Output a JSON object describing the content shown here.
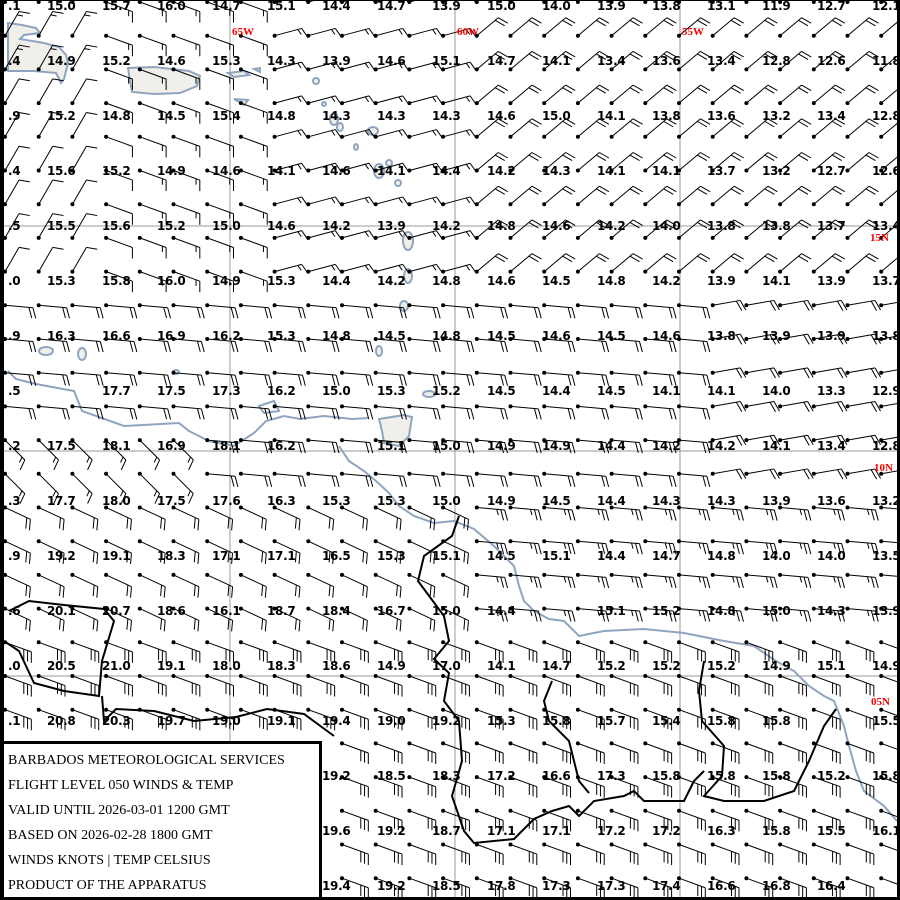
{
  "colors": {
    "coast": "#8ea4bf",
    "border": "#000000",
    "grid": "#999999",
    "label": "#ff0000",
    "barb": "#000000"
  },
  "geo_labels": {
    "lon": [
      "65W",
      "60W",
      "55W"
    ],
    "lat": [
      "15N",
      "10N",
      "05N"
    ]
  },
  "legend": {
    "lines": [
      "BARBADOS METEOROLOGICAL SERVICES",
      "FLIGHT LEVEL 050 WINDS & TEMP",
      "VALID UNTIL 2026-03-01 1200 GMT",
      "BASED ON 2026-02-28 1800 GMT",
      "WINDS KNOTS | TEMP CELSIUS",
      "PRODUCT OF THE APPARATUS"
    ]
  },
  "temps": {
    "edge_column": [
      ".1",
      ".4",
      ".9",
      ".4",
      ".5",
      ".0",
      ".9",
      ".5",
      ".2",
      ".3",
      ".9",
      ".6",
      ".0",
      ".1",
      "",
      "",
      ""
    ],
    "rows": [
      [
        "15.0",
        "15.7",
        "16.0",
        "14.7",
        "15.1",
        "14.4",
        "14.7",
        "13.9",
        "15.0",
        "14.0",
        "13.9",
        "13.8",
        "13.1",
        "11.9",
        "12.7",
        "12.1"
      ],
      [
        "14.9",
        "15.2",
        "14.6",
        "15.3",
        "14.3",
        "13.9",
        "14.6",
        "15.1",
        "14.7",
        "14.1",
        "13.4",
        "13.6",
        "13.4",
        "12.8",
        "12.6",
        "11.8"
      ],
      [
        "15.2",
        "14.8",
        "14.5",
        "15.4",
        "14.8",
        "14.3",
        "14.3",
        "14.3",
        "14.6",
        "15.0",
        "14.1",
        "13.8",
        "13.6",
        "13.2",
        "13.4",
        "12.8"
      ],
      [
        "15.6",
        "15.2",
        "14.9",
        "14.6",
        "14.1",
        "14.6",
        "14.1",
        "14.4",
        "14.2",
        "14.3",
        "14.1",
        "14.1",
        "13.7",
        "13.2",
        "12.7",
        "12.6"
      ],
      [
        "15.5",
        "15.6",
        "15.2",
        "15.0",
        "14.6",
        "14.2",
        "13.9",
        "14.2",
        "14.8",
        "14.6",
        "14.2",
        "14.0",
        "13.8",
        "13.8",
        "13.7",
        "13.4"
      ],
      [
        "15.3",
        "15.8",
        "16.0",
        "14.9",
        "15.3",
        "14.4",
        "14.2",
        "14.8",
        "14.6",
        "14.5",
        "14.8",
        "14.2",
        "13.9",
        "14.1",
        "13.9",
        "13.7"
      ],
      [
        "16.3",
        "16.6",
        "16.9",
        "16.2",
        "15.3",
        "14.8",
        "14.5",
        "14.8",
        "14.5",
        "14.6",
        "14.5",
        "14.6",
        "13.8",
        "13.9",
        "13.9",
        "13.8"
      ],
      [
        "",
        "17.7",
        "17.5",
        "17.3",
        "16.2",
        "15.0",
        "15.3",
        "15.2",
        "14.5",
        "14.4",
        "14.5",
        "14.1",
        "14.1",
        "14.0",
        "13.3",
        "12.9"
      ],
      [
        "17.5",
        "18.1",
        "16.9",
        "18.1",
        "16.2",
        "",
        "15.1",
        "15.0",
        "14.9",
        "14.9",
        "14.4",
        "14.2",
        "14.2",
        "14.1",
        "13.4",
        "12.8"
      ],
      [
        "17.7",
        "18.0",
        "17.5",
        "17.6",
        "16.3",
        "15.3",
        "15.3",
        "15.0",
        "14.9",
        "14.5",
        "14.4",
        "14.3",
        "14.3",
        "13.9",
        "13.6",
        "13.2"
      ],
      [
        "19.2",
        "19.1",
        "18.3",
        "17.1",
        "17.1",
        "16.5",
        "15.3",
        "15.1",
        "14.5",
        "15.1",
        "14.4",
        "14.7",
        "14.8",
        "14.0",
        "14.0",
        "13.5"
      ],
      [
        "20.1",
        "20.7",
        "18.6",
        "16.1",
        "18.7",
        "18.4",
        "16.7",
        "15.0",
        "14.4",
        "",
        "15.1",
        "15.2",
        "14.8",
        "15.0",
        "14.3",
        "13.9"
      ],
      [
        "20.5",
        "21.0",
        "19.1",
        "18.0",
        "18.3",
        "18.6",
        "14.9",
        "17.0",
        "14.1",
        "14.7",
        "15.2",
        "15.2",
        "15.2",
        "14.9",
        "15.1",
        "14.9"
      ],
      [
        "20.8",
        "20.3",
        "19.7",
        "19.0",
        "19.1",
        "19.4",
        "19.0",
        "19.2",
        "15.3",
        "15.8",
        "15.7",
        "15.4",
        "15.8",
        "15.8",
        "",
        "15.5"
      ],
      [
        "",
        "",
        "",
        "",
        "",
        "19.2",
        "18.5",
        "18.3",
        "17.2",
        "16.6",
        "17.3",
        "15.8",
        "15.8",
        "15.8",
        "15.2",
        "15.8"
      ],
      [
        "",
        "",
        "",
        "",
        "",
        "19.6",
        "19.2",
        "18.7",
        "17.1",
        "17.1",
        "17.2",
        "17.2",
        "16.3",
        "15.8",
        "15.5",
        "16.1"
      ],
      [
        "",
        "",
        "",
        "",
        "",
        "19.4",
        "19.2",
        "18.5",
        "17.8",
        "17.3",
        "17.3",
        "17.4",
        "16.6",
        "16.8",
        "16.4",
        ""
      ]
    ]
  }
}
